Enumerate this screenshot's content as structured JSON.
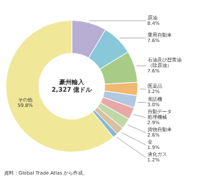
{
  "chart_data": {
    "type": "doughnut",
    "title": "豪州輸入\n2,327 億ドル",
    "annotations": [
      "資料：Global Trade Atlas から作成。"
    ],
    "categories": [
      "原油",
      "乗用自動車",
      "石油及び歴青油\n（除原油）",
      "医薬品",
      "電話機",
      "自動データ\n処理機械",
      "貨物自動車",
      "金",
      "液化ガス",
      "その他"
    ],
    "values": [
      8.4,
      7.6,
      7.6,
      3.2,
      3.0,
      2.9,
      2.6,
      1.9,
      1.2,
      59.8
    ],
    "value_labels": [
      "8.4%",
      "7.6%",
      "7.6%",
      "3.2%",
      "3.0%",
      "2.9%",
      "2.6%",
      "1.9%",
      "1.2%",
      "59.8%"
    ],
    "data_labels": true,
    "colors": [
      "#b8aed4",
      "#88c8d8",
      "#a8cc88",
      "#f0b870",
      "#b0c8e0",
      "#e8a8a8",
      "#c0d8a8",
      "#d8c0a0",
      "#88b8d8",
      "#f0e898"
    ],
    "legend": false
  }
}
